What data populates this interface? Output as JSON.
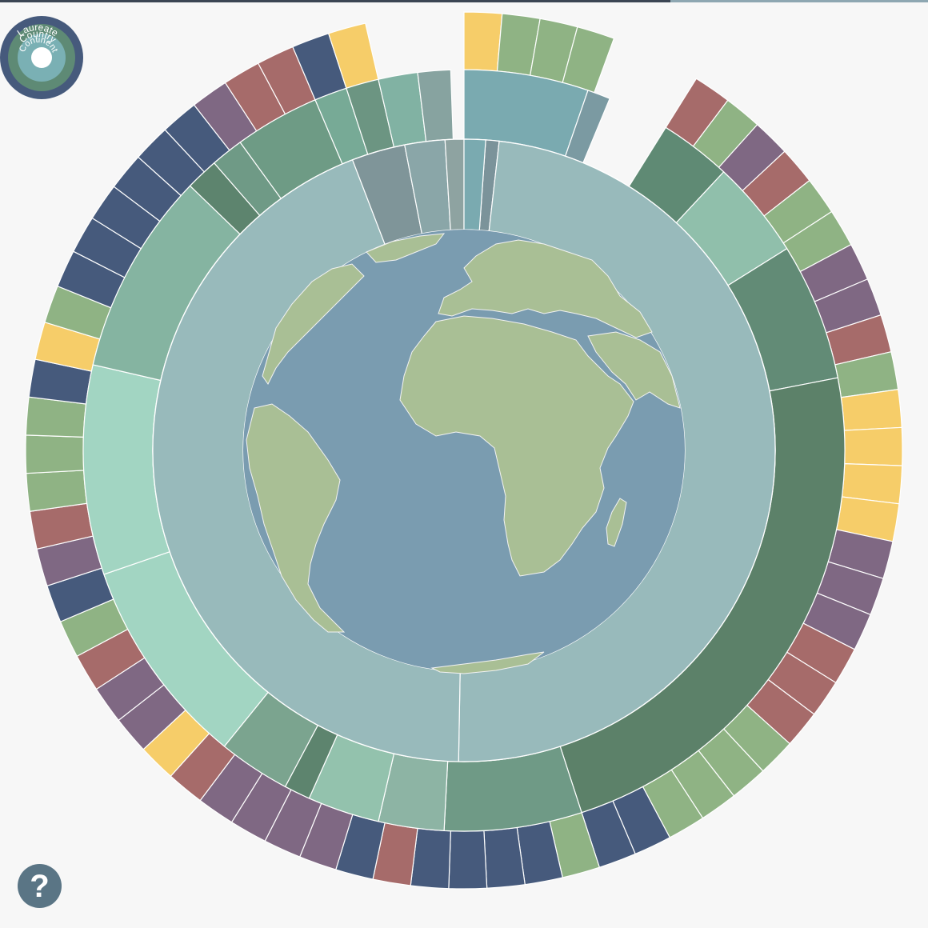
{
  "legend": {
    "ring_labels": [
      "Laureate",
      "Country",
      "Continent"
    ],
    "colors": [
      "#465a7c",
      "#5e8a75",
      "#7ab0b4"
    ]
  },
  "help": {
    "icon": "question-icon",
    "label": "?",
    "color": "#5a7585"
  },
  "colors": {
    "background": "#f7f7f7",
    "ocean": "#7a9cb0",
    "land": "#a9bf95",
    "continent_ring": "#98babb",
    "topbar": [
      "#3c4654",
      "#8ea7b2"
    ]
  },
  "continents": [
    {
      "color": "#98babb",
      "span": [
        -112,
        4
      ]
    },
    {
      "color": "#7b939a",
      "span": [
        4,
        6.5
      ]
    },
    {
      "color": "#98babb",
      "span": [
        6.5,
        181
      ]
    },
    {
      "color": "#98babb",
      "span": [
        181,
        339
      ]
    },
    {
      "color": "#7f9599",
      "span": [
        339,
        349
      ]
    },
    {
      "color": "#8aa6a8",
      "span": [
        349,
        356.5
      ]
    },
    {
      "color": "#8ea3a1",
      "span": [
        356.5,
        360
      ]
    },
    {
      "color": "#7aaab0",
      "span": [
        0,
        4
      ]
    }
  ],
  "countries": [
    {
      "color": "#7aaab0",
      "span": [
        0,
        19
      ]
    },
    {
      "color": "#7b9aa2",
      "span": [
        19,
        22.5
      ]
    },
    {
      "color": "#5f8a74",
      "span": [
        32,
        43
      ]
    },
    {
      "color": "#90bfab",
      "span": [
        43,
        58
      ]
    },
    {
      "color": "#628b76",
      "span": [
        58,
        79
      ]
    },
    {
      "color": "#5c8169",
      "span": [
        79,
        162
      ]
    },
    {
      "color": "#6f9a86",
      "span": [
        162,
        183
      ]
    },
    {
      "color": "#8db4a4",
      "span": [
        183,
        193
      ]
    },
    {
      "color": "#93c2ad",
      "span": [
        193,
        204
      ]
    },
    {
      "color": "#5d846e",
      "span": [
        204,
        208
      ]
    },
    {
      "color": "#7ba48f",
      "span": [
        208,
        219
      ]
    },
    {
      "color": "#a2d5c2",
      "span": [
        219,
        251
      ]
    },
    {
      "color": "#a2d5c2",
      "span": [
        251,
        283
      ]
    },
    {
      "color": "#85b4a1",
      "span": [
        283,
        314
      ]
    },
    {
      "color": "#5d846e",
      "span": [
        314,
        319
      ]
    },
    {
      "color": "#6f9a86",
      "span": [
        319,
        324
      ]
    },
    {
      "color": "#6e9b85",
      "span": [
        324,
        337
      ]
    },
    {
      "color": "#77aa96",
      "span": [
        337,
        342
      ]
    },
    {
      "color": "#6c9582",
      "span": [
        342,
        347
      ]
    },
    {
      "color": "#81b2a3",
      "span": [
        347,
        353
      ]
    },
    {
      "color": "#87a3a0",
      "span": [
        353,
        358
      ]
    }
  ],
  "laureates": [
    {
      "color": "#f6cd69",
      "span": [
        0,
        5
      ]
    },
    {
      "color": "#8fb384",
      "span": [
        5,
        10
      ]
    },
    {
      "color": "#8fb384",
      "span": [
        10,
        15
      ]
    },
    {
      "color": "#8fb384",
      "span": [
        15,
        20
      ]
    },
    {
      "color": "#a66b6a",
      "span": [
        32,
        37
      ]
    },
    {
      "color": "#8fb384",
      "span": [
        37,
        42
      ]
    },
    {
      "color": "#7f6883",
      "span": [
        42,
        47
      ]
    },
    {
      "color": "#a66b6a",
      "span": [
        47,
        52
      ]
    },
    {
      "color": "#8fb384",
      "span": [
        52,
        57
      ]
    },
    {
      "color": "#8fb384",
      "span": [
        57,
        62
      ]
    },
    {
      "color": "#7f6883",
      "span": [
        62,
        67
      ]
    },
    {
      "color": "#7f6883",
      "span": [
        67,
        72
      ]
    },
    {
      "color": "#a66b6a",
      "span": [
        72,
        77
      ]
    },
    {
      "color": "#8fb384",
      "span": [
        77,
        82
      ]
    },
    {
      "color": "#f6cd69",
      "span": [
        82,
        87
      ]
    },
    {
      "color": "#f6cd69",
      "span": [
        87,
        92
      ]
    },
    {
      "color": "#f6cd69",
      "span": [
        92,
        97
      ]
    },
    {
      "color": "#f6cd69",
      "span": [
        97,
        102
      ]
    },
    {
      "color": "#7f6883",
      "span": [
        102,
        107
      ]
    },
    {
      "color": "#7f6883",
      "span": [
        107,
        112
      ]
    },
    {
      "color": "#7f6883",
      "span": [
        112,
        117
      ]
    },
    {
      "color": "#a66b6a",
      "span": [
        117,
        122
      ]
    },
    {
      "color": "#a66b6a",
      "span": [
        122,
        127
      ]
    },
    {
      "color": "#a66b6a",
      "span": [
        127,
        132
      ]
    },
    {
      "color": "#8fb384",
      "span": [
        132,
        137
      ]
    },
    {
      "color": "#8fb384",
      "span": [
        137,
        142
      ]
    },
    {
      "color": "#8fb384",
      "span": [
        142,
        147
      ]
    },
    {
      "color": "#8fb384",
      "span": [
        147,
        152
      ]
    },
    {
      "color": "#465a7c",
      "span": [
        152,
        157
      ]
    },
    {
      "color": "#465a7c",
      "span": [
        157,
        162
      ]
    },
    {
      "color": "#8fb384",
      "span": [
        162,
        167
      ]
    },
    {
      "color": "#465a7c",
      "span": [
        167,
        172
      ]
    },
    {
      "color": "#465a7c",
      "span": [
        172,
        177
      ]
    },
    {
      "color": "#465a7c",
      "span": [
        177,
        182
      ]
    },
    {
      "color": "#465a7c",
      "span": [
        182,
        187
      ]
    },
    {
      "color": "#a66b6a",
      "span": [
        187,
        192
      ]
    },
    {
      "color": "#465a7c",
      "span": [
        192,
        197
      ]
    },
    {
      "color": "#7f6883",
      "span": [
        197,
        202
      ]
    },
    {
      "color": "#7f6883",
      "span": [
        202,
        207
      ]
    },
    {
      "color": "#7f6883",
      "span": [
        207,
        212
      ]
    },
    {
      "color": "#7f6883",
      "span": [
        212,
        217
      ]
    },
    {
      "color": "#a66b6a",
      "span": [
        217,
        222
      ]
    },
    {
      "color": "#f6cd69",
      "span": [
        222,
        227
      ]
    },
    {
      "color": "#7f6883",
      "span": [
        227,
        232
      ]
    },
    {
      "color": "#7f6883",
      "span": [
        232,
        237
      ]
    },
    {
      "color": "#a66b6a",
      "span": [
        237,
        242
      ]
    },
    {
      "color": "#8fb384",
      "span": [
        242,
        247
      ]
    },
    {
      "color": "#465a7c",
      "span": [
        247,
        252
      ]
    },
    {
      "color": "#7f6883",
      "span": [
        252,
        257
      ]
    },
    {
      "color": "#a66b6a",
      "span": [
        257,
        262
      ]
    },
    {
      "color": "#8fb384",
      "span": [
        262,
        267
      ]
    },
    {
      "color": "#8fb384",
      "span": [
        267,
        272
      ]
    },
    {
      "color": "#8fb384",
      "span": [
        272,
        277
      ]
    },
    {
      "color": "#465a7c",
      "span": [
        277,
        282
      ]
    },
    {
      "color": "#f6cd69",
      "span": [
        282,
        287
      ]
    },
    {
      "color": "#8fb384",
      "span": [
        287,
        292
      ]
    },
    {
      "color": "#465a7c",
      "span": [
        292,
        297
      ]
    },
    {
      "color": "#465a7c",
      "span": [
        297,
        302
      ]
    },
    {
      "color": "#465a7c",
      "span": [
        302,
        307
      ]
    },
    {
      "color": "#465a7c",
      "span": [
        307,
        312
      ]
    },
    {
      "color": "#465a7c",
      "span": [
        312,
        317
      ]
    },
    {
      "color": "#465a7c",
      "span": [
        317,
        322
      ]
    },
    {
      "color": "#7f6883",
      "span": [
        322,
        327
      ]
    },
    {
      "color": "#a66b6a",
      "span": [
        327,
        332
      ]
    },
    {
      "color": "#a66b6a",
      "span": [
        332,
        337
      ]
    },
    {
      "color": "#465a7c",
      "span": [
        337,
        342
      ]
    },
    {
      "color": "#f6cd69",
      "span": [
        342,
        347
      ]
    }
  ]
}
